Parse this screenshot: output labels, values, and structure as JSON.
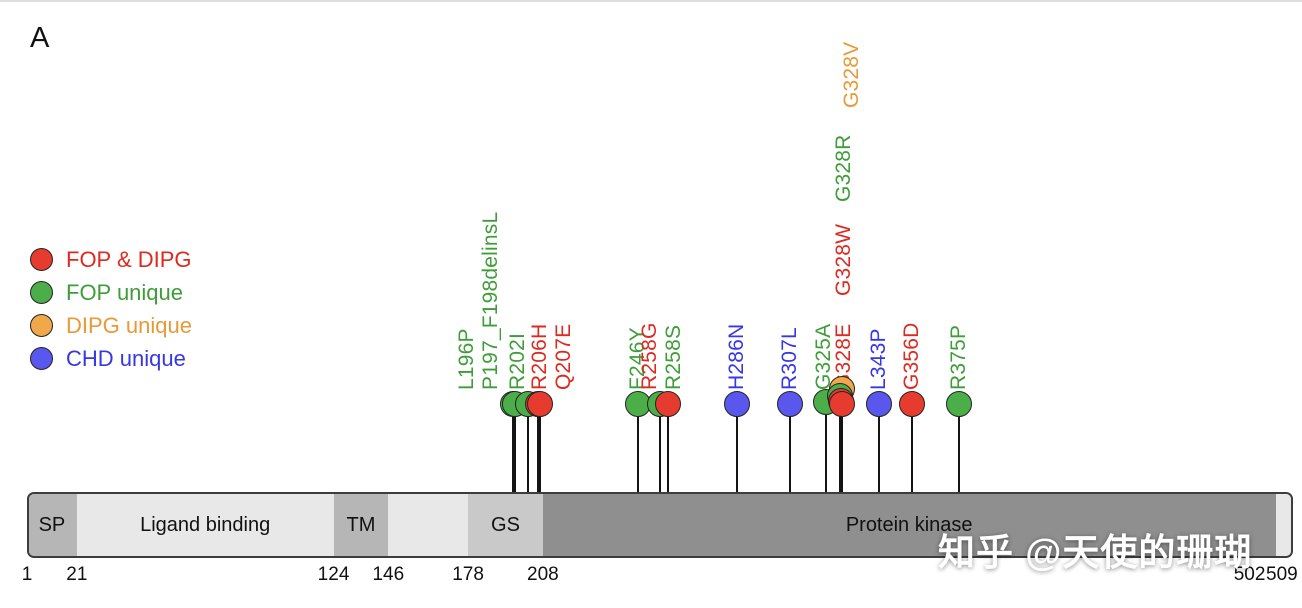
{
  "panel_label": "A",
  "watermark": "知乎 @天使的珊瑚",
  "legend": {
    "items": [
      {
        "label": "FOP & DIPG",
        "group": "fop_dipg"
      },
      {
        "label": "FOP unique",
        "group": "fop"
      },
      {
        "label": "DIPG unique",
        "group": "dipg"
      },
      {
        "label": "CHD unique",
        "group": "chd"
      }
    ]
  },
  "colors": {
    "fop_dipg": "#dd2a20",
    "fop": "#3f9d39",
    "dipg": "#e79a36",
    "chd": "#3737e3",
    "dot_fop_dipg": "#e63c30",
    "dot_fop": "#4cae49",
    "dot_dipg": "#f0a84b",
    "dot_chd": "#5a57ee",
    "domain_light": "#e8e8e8",
    "domain_mid": "#b6b6b6",
    "domain_gs": "#c9c9c9",
    "domain_dark": "#8f8f8f"
  },
  "chart_data": {
    "type": "lollipop-protein-domain",
    "protein_length": 509,
    "axis_ticks": [
      1,
      21,
      124,
      146,
      178,
      208,
      502,
      509
    ],
    "domains": [
      {
        "name": "SP",
        "start": 1,
        "end": 21,
        "shade": "mid"
      },
      {
        "name": "Ligand binding",
        "start": 21,
        "end": 124,
        "shade": "light"
      },
      {
        "name": "TM",
        "start": 124,
        "end": 146,
        "shade": "mid"
      },
      {
        "name": "",
        "start": 146,
        "end": 178,
        "shade": "light"
      },
      {
        "name": "GS",
        "start": 178,
        "end": 208,
        "shade": "gs"
      },
      {
        "name": "Protein kinase",
        "start": 208,
        "end": 502,
        "shade": "dark"
      },
      {
        "name": "",
        "start": 502,
        "end": 509,
        "shade": "light"
      }
    ],
    "mutations": [
      {
        "label": "L196P",
        "residue": 196,
        "group": "fop",
        "label_dx": -46
      },
      {
        "label": "P197_F198delinsL",
        "residue": 197,
        "group": "fop",
        "label_dx": -24
      },
      {
        "label": "R202I",
        "residue": 202,
        "group": "fop",
        "label_dx": -10
      },
      {
        "label": "R206H",
        "residue": 206,
        "group": "fop_dipg",
        "label_dx": 2
      },
      {
        "label": "Q207E",
        "residue": 207,
        "group": "fop_dipg",
        "label_dx": 24
      },
      {
        "label": "F246Y",
        "residue": 246,
        "group": "fop"
      },
      {
        "label": "R258S",
        "residue": 258,
        "group": "fop",
        "label_dx": 7,
        "dot_dx": -7
      },
      {
        "label": "R258G",
        "residue": 258,
        "group": "fop_dipg",
        "label_dx": -17,
        "dot_dx": 1
      },
      {
        "label": "H286N",
        "residue": 286,
        "group": "chd"
      },
      {
        "label": "R307L",
        "residue": 307,
        "group": "chd"
      },
      {
        "label": "G325A",
        "residue": 325,
        "group": "fop",
        "label_dx": -10,
        "dot_dx": -8,
        "dot_dy": -2
      },
      {
        "label": "G328V",
        "residue": 328,
        "group": "dipg",
        "label_dx": 10,
        "dot_dy": -15,
        "stack": 3
      },
      {
        "label": "G328R",
        "residue": 328,
        "group": "fop",
        "label_dx": 2,
        "dot_dx": -2,
        "dot_dy": -8,
        "stack": 2
      },
      {
        "label": "G328W",
        "residue": 328,
        "group": "fop_dipg",
        "label_dx": 2,
        "dot_dx": -1,
        "dot_dy": -3,
        "stack": 1
      },
      {
        "label": "G328E",
        "residue": 328,
        "group": "fop_dipg",
        "label_dx": 2
      },
      {
        "label": "L343P",
        "residue": 343,
        "group": "chd"
      },
      {
        "label": "G356D",
        "residue": 356,
        "group": "fop_dipg"
      },
      {
        "label": "R375P",
        "residue": 375,
        "group": "fop"
      }
    ]
  }
}
